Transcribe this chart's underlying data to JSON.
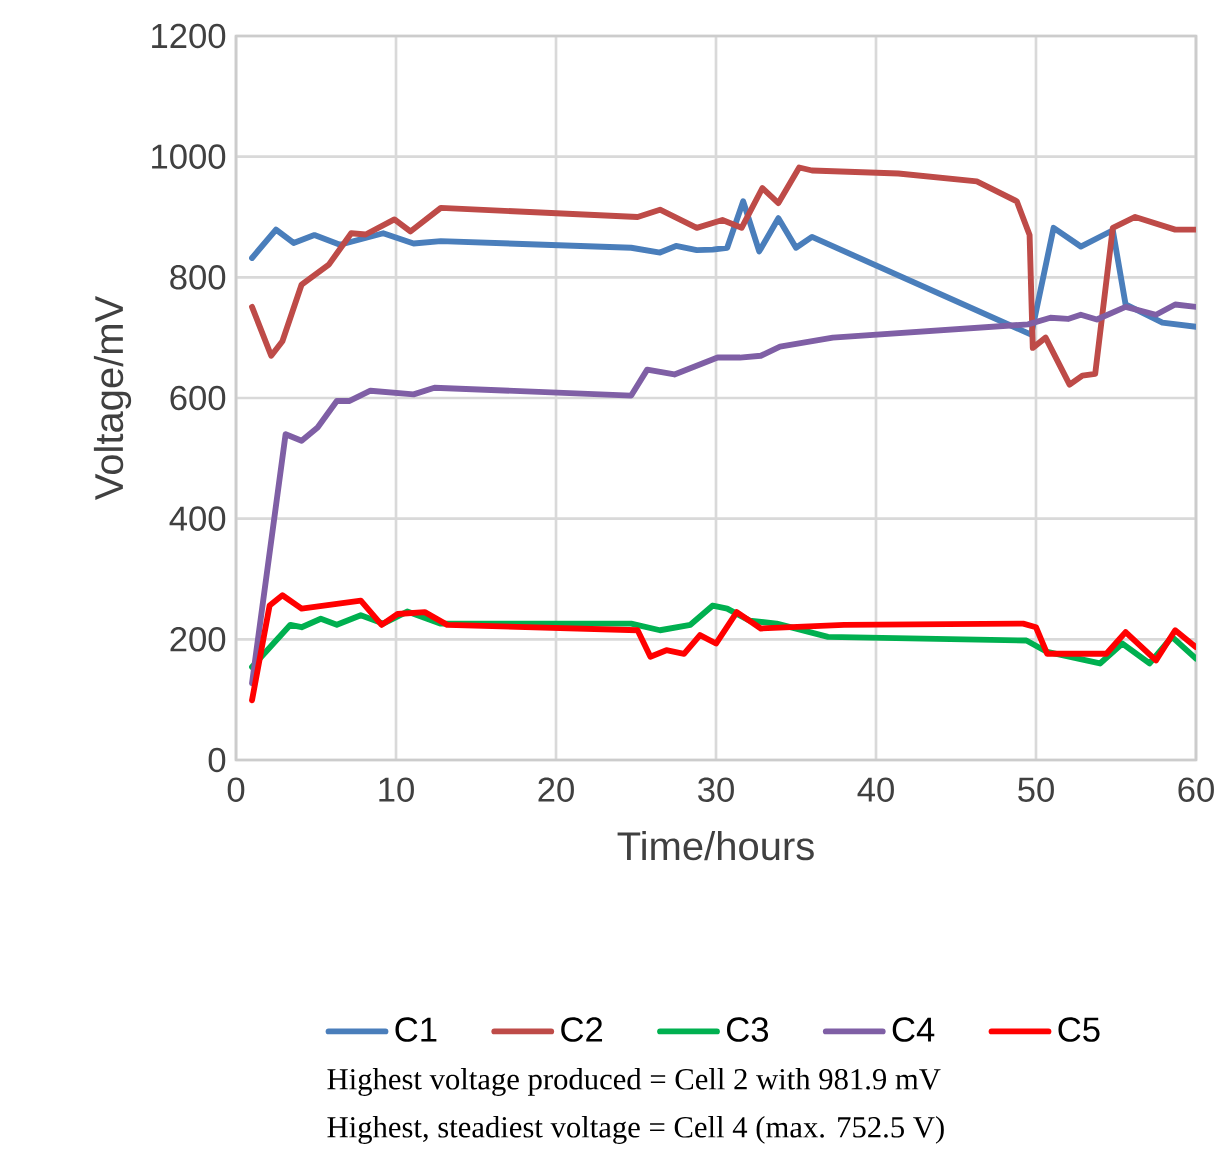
{
  "chart_data": {
    "type": "line",
    "xlabel": "Time/hours",
    "ylabel": "Voltage/mV",
    "xlim": [
      0,
      60
    ],
    "ylim": [
      0,
      1200
    ],
    "xticks": [
      0,
      10,
      20,
      30,
      40,
      50,
      60
    ],
    "yticks": [
      0,
      200,
      400,
      600,
      800,
      1000,
      1200
    ],
    "grid": true,
    "legend": "bottom",
    "marker": "none",
    "line_style": "solid",
    "series": [
      {
        "name": "C1",
        "color": "#4a7ebb",
        "x": [
          1,
          2.5,
          3.6,
          4.9,
          6.5,
          9.2,
          11.1,
          12.8,
          24.7,
          26.5,
          27.5,
          28.8,
          29.8,
          30.7,
          31.7,
          32.7,
          33.9,
          35,
          36,
          49.7,
          51.1,
          52.8,
          54.8,
          55.6,
          57.9,
          60
        ],
        "values": [
          832,
          879,
          857,
          870,
          854,
          873,
          856,
          860,
          849,
          841,
          852,
          845,
          846,
          849,
          926,
          843,
          898,
          849,
          867,
          705,
          882,
          851,
          878,
          755,
          725,
          718
        ]
      },
      {
        "name": "C2",
        "color": "#be4b48",
        "x": [
          1,
          2.2,
          2.9,
          4.1,
          5.8,
          7.2,
          8.1,
          9.9,
          10.9,
          12.8,
          25.1,
          26.5,
          28.8,
          30.4,
          31.6,
          32.9,
          33.9,
          35.2,
          36,
          41.4,
          46.3,
          48.8,
          49.6,
          49.8,
          50.6,
          52.1,
          52.9,
          53.7,
          54.8,
          56.2,
          58.7,
          60
        ],
        "values": [
          751,
          670,
          694,
          788,
          821,
          873,
          871,
          896,
          876,
          915,
          900,
          912,
          882,
          895,
          882,
          948,
          923,
          982,
          977,
          972,
          959,
          926,
          870,
          683,
          700,
          622,
          637,
          640,
          882,
          900,
          879,
          879
        ]
      },
      {
        "name": "C3",
        "color": "#00b050",
        "x": [
          1,
          3.4,
          4.1,
          5.3,
          6.3,
          7.8,
          9.2,
          10.7,
          12.8,
          24.7,
          26.5,
          28.4,
          29.8,
          30.7,
          32.1,
          33.8,
          37,
          49.4,
          50.7,
          54,
          55.4,
          57.1,
          58.5,
          60
        ],
        "values": [
          154,
          224,
          220,
          234,
          224,
          240,
          226,
          246,
          226,
          226,
          215,
          224,
          256,
          251,
          231,
          226,
          204,
          198,
          179,
          160,
          193,
          160,
          204,
          168
        ]
      },
      {
        "name": "C4",
        "color": "#7f5fa5",
        "x": [
          1,
          3.1,
          4.1,
          5.1,
          6.3,
          7.1,
          8.4,
          11.1,
          12.4,
          24.7,
          25.7,
          27.4,
          30.1,
          31.5,
          32.8,
          34,
          37.3,
          49.5,
          50.9,
          52,
          52.8,
          53.8,
          55.6,
          57.5,
          58.7,
          60
        ],
        "values": [
          127,
          540,
          529,
          551,
          595,
          595,
          612,
          606,
          617,
          604,
          647,
          639,
          667,
          667,
          670,
          685,
          700,
          722,
          733,
          731,
          738,
          730,
          751,
          738,
          755,
          751
        ]
      },
      {
        "name": "C5",
        "color": "#ff0000",
        "x": [
          1,
          2.1,
          2.9,
          4.1,
          7.8,
          9.1,
          10.1,
          11.8,
          13.2,
          25.1,
          25.9,
          26.9,
          28,
          29,
          30,
          31.3,
          32.8,
          38,
          49.2,
          50,
          50.7,
          54.4,
          55.6,
          57.5,
          58.7,
          60
        ],
        "values": [
          99,
          256,
          273,
          251,
          264,
          224,
          242,
          245,
          224,
          215,
          171,
          182,
          176,
          207,
          193,
          245,
          218,
          224,
          226,
          220,
          176,
          176,
          212,
          165,
          215,
          187
        ]
      }
    ],
    "annotations": [
      "Highest voltage produced = Cell 2 with 981.9 mV",
      "Highest, steadiest voltage = Cell 4 (max. 752.5 V)"
    ]
  }
}
